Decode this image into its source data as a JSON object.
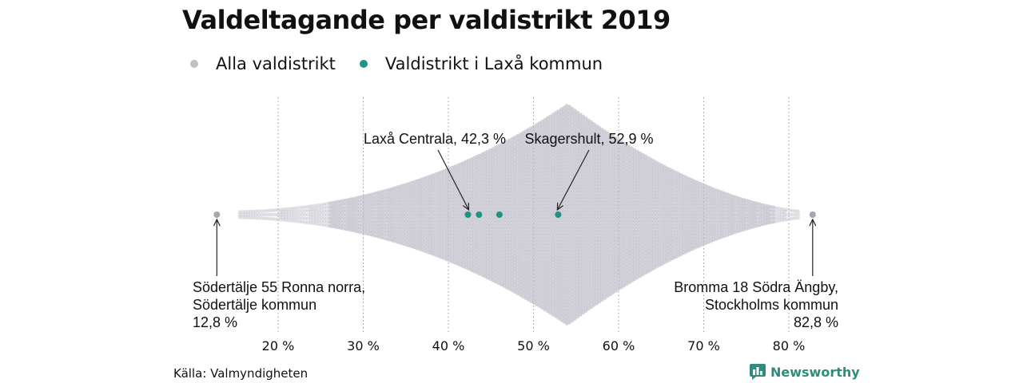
{
  "chart_data": {
    "type": "scatter",
    "subtype": "beeswarm",
    "title": "Valdeltagande per valdistrikt 2019",
    "legend": [
      {
        "label": "Alla valdistrikt",
        "color": "#c0bfca"
      },
      {
        "label": "Valdistrikt i Laxå kommun",
        "color": "#1e9482"
      }
    ],
    "legend_position": "top-left",
    "x_ticks": [
      20,
      30,
      40,
      50,
      60,
      70,
      80
    ],
    "x_tick_labels": [
      "20 %",
      "30 %",
      "40 %",
      "50 %",
      "60 %",
      "70 %",
      "80 %"
    ],
    "x_range": [
      10,
      85
    ],
    "grid": "vertical-dotted",
    "distribution": {
      "min": 12.8,
      "max": 82.8,
      "peak": 54
    },
    "series": [
      {
        "name": "Valdistrikt i Laxå kommun",
        "values": [
          42.3,
          43.6,
          46.0,
          52.9
        ]
      }
    ],
    "annotations": [
      {
        "text": "Laxå Centrala, 42,3 %",
        "x": 42.3
      },
      {
        "text": "Skagershult, 52,9 %",
        "x": 52.9
      },
      {
        "lines": [
          "Södertälje 55 Ronna norra,",
          "Södertälje kommun",
          "12,8 %"
        ],
        "x": 12.8
      },
      {
        "lines": [
          "Bromma 18 Södra Ängby,",
          "Stockholms kommun",
          "82,8 %"
        ],
        "x": 82.8
      }
    ]
  },
  "footer": {
    "source": "Källa: Valmyndigheten",
    "brand": "Newsworthy"
  }
}
